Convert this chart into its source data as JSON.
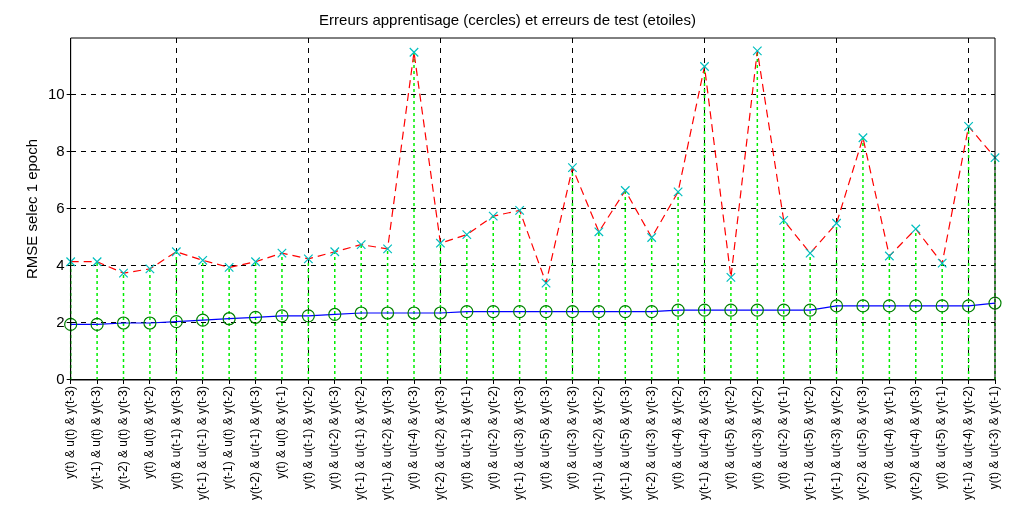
{
  "chart_data": {
    "type": "line",
    "title": "Erreurs apprentisage (cercles) et erreurs de test (etoiles)",
    "ylabel": "RMSE selec 1 epoch",
    "categories": [
      "y(t) & u(t) & y(t-3)",
      "y(t-1) & u(t) & y(t-3)",
      "y(t-2) & u(t) & y(t-3)",
      "y(t) & u(t) & y(t-2)",
      "y(t) & u(t-1) & y(t-3)",
      "y(t-1) & u(t-1) & y(t-3)",
      "y(t-1) & u(t) & y(t-2)",
      "y(t-2) & u(t-1) & y(t-3)",
      "y(t) & u(t) & y(t-1)",
      "y(t) & u(t-1) & y(t-2)",
      "y(t) & u(t-2) & y(t-3)",
      "y(t-1) & u(t-1) & y(t-2)",
      "y(t-1) & u(t-2) & y(t-3)",
      "y(t) & u(t-4) & y(t-3)",
      "y(t-2) & u(t-2) & y(t-3)",
      "y(t) & u(t-1) & y(t-1)",
      "y(t) & u(t-2) & y(t-2)",
      "y(t-1) & u(t-3) & y(t-3)",
      "y(t) & u(t-5) & y(t-3)",
      "y(t) & u(t-3) & y(t-3)",
      "y(t-1) & u(t-2) & y(t-2)",
      "y(t-1) & u(t-5) & y(t-3)",
      "y(t-2) & u(t-3) & y(t-3)",
      "y(t) & u(t-4) & y(t-2)",
      "y(t-1) & u(t-4) & y(t-3)",
      "y(t) & u(t-5) & y(t-2)",
      "y(t) & u(t-3) & y(t-2)",
      "y(t) & u(t-2) & y(t-1)",
      "y(t-1) & u(t-5) & y(t-2)",
      "y(t-1) & u(t-3) & y(t-2)",
      "y(t-2) & u(t-5) & y(t-3)",
      "y(t) & u(t-4) & y(t-1)",
      "y(t-2) & u(t-4) & y(t-3)",
      "y(t) & u(t-5) & y(t-1)",
      "y(t-1) & u(t-4) & y(t-2)",
      "y(t) & u(t-3) & y(t-1)"
    ],
    "series": [
      {
        "color": "#0000ff",
        "marker": "circle",
        "line_style": "solid",
        "colors": [
          "#008000",
          "#008000",
          "#008000",
          "#008000",
          "#008000",
          "#008000",
          "#008000",
          "#008000",
          "#008000",
          "#008000",
          "#008000",
          "#008000",
          "#008000",
          "#008000",
          "#008000",
          "#008000",
          "#008000",
          "#008000",
          "#008000",
          "#008000",
          "#008000",
          "#008000",
          "#008000",
          "#008000",
          "#008000",
          "#008000",
          "#008000",
          "#008000",
          "#008000",
          "#008000",
          "#008000",
          "#008000",
          "#008000",
          "#008000",
          "#008000",
          "#008000"
        ],
        "values": [
          1.95,
          1.95,
          2.0,
          2.0,
          2.05,
          2.1,
          2.15,
          2.2,
          2.25,
          2.25,
          2.3,
          2.35,
          2.35,
          2.35,
          2.35,
          2.4,
          2.4,
          2.4,
          2.4,
          2.4,
          2.4,
          2.4,
          2.4,
          2.45,
          2.45,
          2.45,
          2.45,
          2.45,
          2.45,
          2.6,
          2.6,
          2.6,
          2.6,
          2.6,
          2.6,
          2.7
        ]
      },
      {
        "type": "lollipop",
        "color": "#00ee00",
        "marker": "cross",
        "line_style": "dotted",
        "colors": [
          "#00bfbf",
          "#00bfbf",
          "#00bfbf",
          "#00bfbf",
          "#00bfbf",
          "#00bfbf",
          "#00bfbf",
          "#00bfbf",
          "#00bfbf",
          "#00bfbf",
          "#00bfbf",
          "#00bfbf",
          "#00bfbf",
          "#00bfbf",
          "#00bfbf",
          "#00bfbf",
          "#00bfbf",
          "#00bfbf",
          "#00bfbf",
          "#00bfbf",
          "#00bfbf",
          "#00bfbf",
          "#00bfbf",
          "#00bfbf",
          "#00bfbf",
          "#00bfbf",
          "#00bfbf",
          "#00bfbf",
          "#00bfbf",
          "#00bfbf",
          "#00bfbf",
          "#00bfbf",
          "#00bfbf",
          "#00bfbf",
          "#00bfbf",
          "#00bfbf"
        ],
        "values": [
          4.15,
          4.15,
          3.75,
          3.9,
          4.5,
          4.2,
          3.95,
          4.15,
          4.45,
          4.25,
          4.5,
          4.75,
          4.6,
          11.5,
          4.8,
          5.1,
          5.75,
          5.95,
          3.4,
          7.45,
          5.2,
          6.65,
          5.0,
          6.6,
          11.0,
          3.6,
          11.55,
          5.6,
          4.45,
          5.5,
          8.5,
          4.35,
          5.3,
          4.1,
          8.9,
          7.8
        ]
      },
      {
        "color": "#ff0000",
        "marker": "none",
        "line_style": "dashed",
        "values": [
          4.15,
          4.15,
          3.75,
          3.9,
          4.5,
          4.2,
          3.95,
          4.15,
          4.45,
          4.25,
          4.5,
          4.75,
          4.6,
          11.5,
          4.8,
          5.1,
          5.75,
          5.95,
          3.4,
          7.45,
          5.2,
          6.65,
          5.0,
          6.6,
          11.0,
          3.6,
          11.55,
          5.6,
          4.45,
          5.5,
          8.5,
          4.35,
          5.3,
          4.1,
          8.9,
          7.8
        ]
      }
    ],
    "ylim": [
      0,
      12
    ],
    "yticks": [
      0,
      2,
      4,
      6,
      8,
      10
    ],
    "grid": true,
    "legend": false
  }
}
